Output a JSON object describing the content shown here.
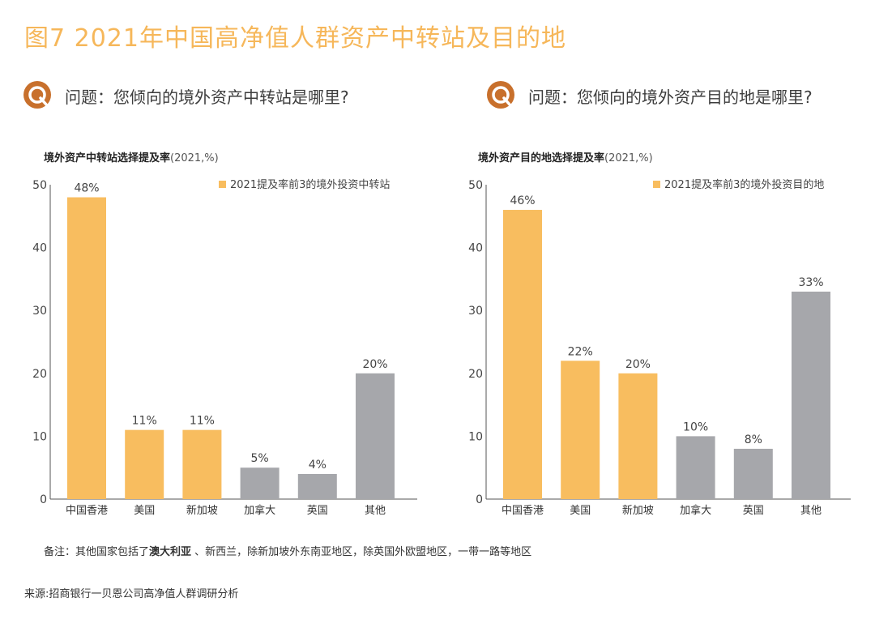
{
  "figure_title": "图7 2021年中国高净值人群资产中转站及目的地",
  "questions": [
    "问题：您倾向的境外资产中转站是哪里?",
    "问题：您倾向的境外资产目的地是哪里?"
  ],
  "colors": {
    "highlight": "#f8bd5f",
    "other": "#a6a7ab",
    "title": "#f6b75a",
    "icon": "#c8702c"
  },
  "chart_data": [
    {
      "type": "bar",
      "title": "境外资产中转站选择提及率",
      "title_suffix": "(2021,%)",
      "categories": [
        "中国香港",
        "美国",
        "新加坡",
        "加拿大",
        "英国",
        "其他"
      ],
      "values": [
        48,
        11,
        11,
        5,
        4,
        20
      ],
      "value_labels": [
        "48%",
        "11%",
        "11%",
        "5%",
        "4%",
        "20%"
      ],
      "highlight": [
        true,
        true,
        true,
        false,
        false,
        false
      ],
      "legend": "2021提及率前3的境外投资中转站",
      "ylim": [
        0,
        50
      ],
      "yticks": [
        "0",
        "10",
        "20",
        "30",
        "40",
        "50"
      ],
      "grid": false
    },
    {
      "type": "bar",
      "title": "境外资产目的地选择提及率",
      "title_suffix": "(2021,%)",
      "categories": [
        "中国香港",
        "美国",
        "新加坡",
        "加拿大",
        "英国",
        "其他"
      ],
      "values": [
        46,
        22,
        20,
        10,
        8,
        33
      ],
      "value_labels": [
        "46%",
        "22%",
        "20%",
        "10%",
        "8%",
        "33%"
      ],
      "highlight": [
        true,
        true,
        true,
        false,
        false,
        false
      ],
      "legend": "2021提及率前3的境外投资目的地",
      "ylim": [
        0,
        50
      ],
      "yticks": [
        "0",
        "10",
        "20",
        "30",
        "40",
        "50"
      ],
      "grid": false
    }
  ],
  "note_prefix": "备注：其他国家包括了",
  "note_bold": "澳大利亚",
  "note_rest": " 、新西兰，除新加坡外东南亚地区，除英国外欧盟地区，一带一路等地区",
  "source": "来源:招商银行一贝恩公司高净值人群调研分析"
}
